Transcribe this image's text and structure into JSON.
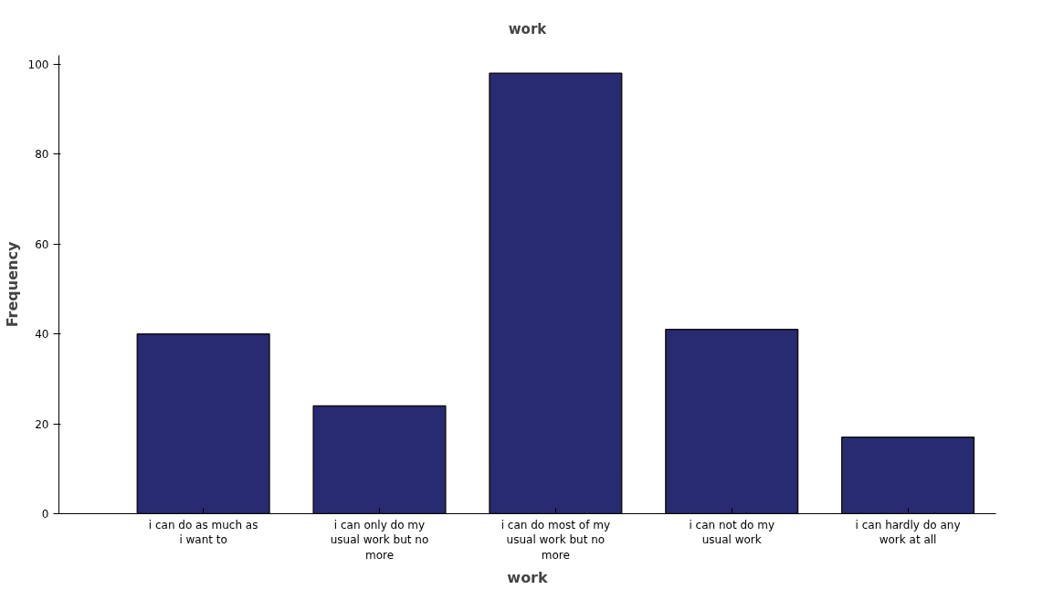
{
  "chart_data": {
    "type": "bar",
    "title": "work",
    "xlabel": "work",
    "ylabel": "Frequency",
    "categories": [
      "i can do as much as i want to",
      "i can only do my usual work but no more",
      "i can do most of my usual work but no more",
      "i can not do my usual work",
      "i can hardly do any work at all"
    ],
    "values": [
      40,
      24,
      98,
      41,
      17
    ],
    "color": "#282a72",
    "ylim": [
      0,
      102
    ],
    "yticks": [
      0,
      20,
      40,
      60,
      80,
      100
    ],
    "grid": false
  }
}
